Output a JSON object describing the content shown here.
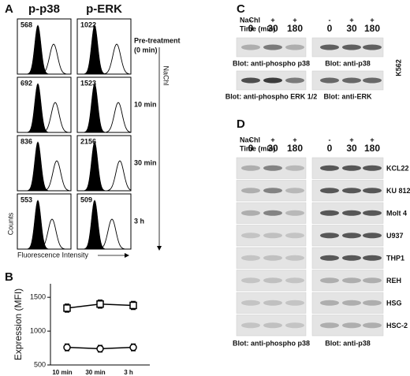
{
  "panel_labels": [
    "A",
    "B",
    "C",
    "D"
  ],
  "flow": {
    "columns": [
      "p-p38",
      "p-ERK"
    ],
    "rows": [
      {
        "time": [
          "Pre-treatment",
          "(0 min)"
        ],
        "mfi": [
          568,
          1022
        ]
      },
      {
        "time": [
          "10 min"
        ],
        "mfi": [
          692,
          1523
        ]
      },
      {
        "time": [
          "30 min"
        ],
        "mfi": [
          836,
          2156
        ]
      },
      {
        "time": [
          "3 h"
        ],
        "mfi": [
          553,
          509
        ]
      }
    ],
    "y_label": "Counts",
    "x_label": "Fluorescence Intensity",
    "treatment": "NaChl"
  },
  "chart_data": {
    "type": "line",
    "y_label": "Expression (MFI)",
    "categories": [
      "10 min",
      "30 min",
      "3 h"
    ],
    "series": [
      {
        "color": "#000000",
        "marker": "square",
        "values": [
          1340,
          1400,
          1380
        ],
        "errors": [
          60,
          60,
          60
        ]
      },
      {
        "color": "#000000",
        "marker": "circle",
        "values": [
          760,
          740,
          760
        ],
        "errors": [
          50,
          50,
          50
        ]
      }
    ],
    "ylim": [
      500,
      1700
    ],
    "yticks": [
      500,
      1000,
      1500
    ]
  },
  "blot_c": {
    "treatment": "NaChl",
    "time_label": "Time (min)",
    "signs": [
      "-",
      "+",
      "+"
    ],
    "times": [
      "0",
      "30",
      "180"
    ],
    "cell_line": "K562",
    "blots": [
      [
        "Blot: anti-phospho p38",
        "Blot: anti-p38"
      ],
      [
        "Blot: anti-phospho ERK 1/2",
        "Blot: anti-ERK"
      ]
    ]
  },
  "blot_d": {
    "treatment": "NaChl",
    "time_label": "Time (min)",
    "signs": [
      "-",
      "+",
      "+"
    ],
    "times": [
      "0",
      "30",
      "180"
    ],
    "cell_lines": [
      "KCL22",
      "KU 812",
      "Molt 4",
      "U937",
      "THP1",
      "REH",
      "HSG",
      "HSC-2"
    ],
    "blots": [
      "Blot: anti-phospho p38",
      "Blot: anti-p38"
    ]
  }
}
